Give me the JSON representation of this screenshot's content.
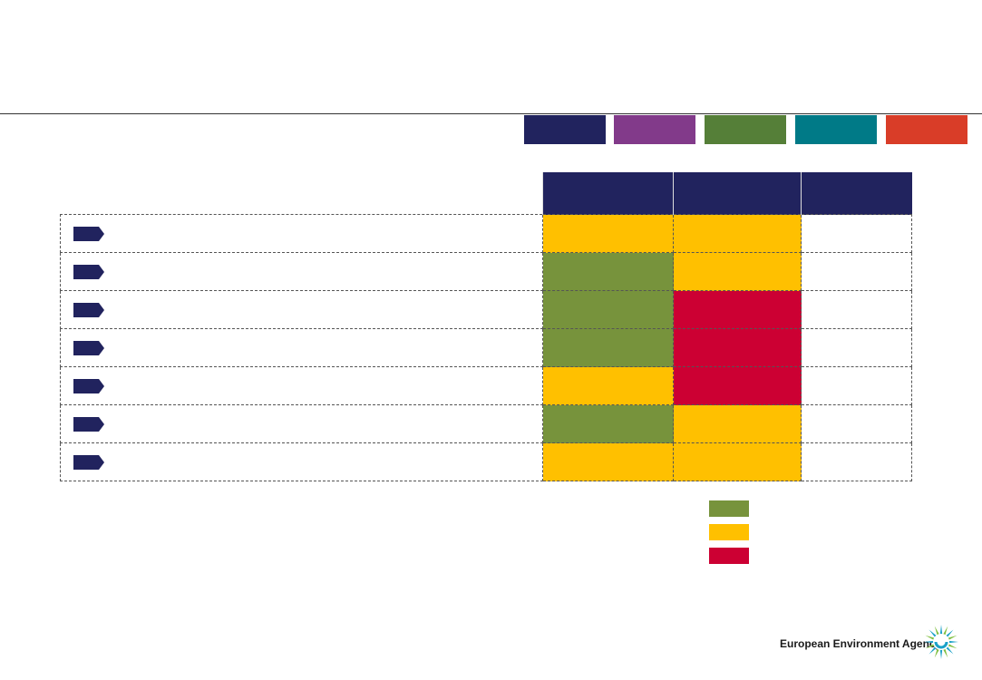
{
  "brand": {
    "agency_name": "European Environment Agency",
    "logo_icon": "eea-sunburst-logo-icon"
  },
  "colors": {
    "navy": "#21235e",
    "green": "#77933c",
    "amber": "#ffc000",
    "red": "#cc0033",
    "white": "#ffffff",
    "logo_blue": "#1aa1c8",
    "logo_green": "#7fbf3f"
  },
  "theme_tabs": [
    {
      "color": "#21235e"
    },
    {
      "color": "#823a8a"
    },
    {
      "color": "#557f38"
    },
    {
      "color": "#007a87"
    },
    {
      "color": "#d93d28"
    }
  ],
  "table": {
    "columns": [
      {
        "label": "",
        "color": "#21235e"
      },
      {
        "label": "",
        "color": "#21235e"
      },
      {
        "label": "",
        "color": "#21235e"
      }
    ],
    "rows": [
      {
        "label": "",
        "icon": "arrow-tag-icon",
        "statuses": [
          "amber",
          "amber",
          "white"
        ]
      },
      {
        "label": "",
        "icon": "arrow-tag-icon",
        "statuses": [
          "green",
          "amber",
          "white"
        ]
      },
      {
        "label": "",
        "icon": "arrow-tag-icon",
        "statuses": [
          "green",
          "red",
          "white"
        ]
      },
      {
        "label": "",
        "icon": "arrow-tag-icon",
        "statuses": [
          "green",
          "red",
          "white"
        ]
      },
      {
        "label": "",
        "icon": "arrow-tag-icon",
        "statuses": [
          "amber",
          "red",
          "white"
        ]
      },
      {
        "label": "",
        "icon": "arrow-tag-icon",
        "statuses": [
          "green",
          "amber",
          "white"
        ]
      },
      {
        "label": "",
        "icon": "arrow-tag-icon",
        "statuses": [
          "amber",
          "amber",
          "white"
        ]
      }
    ]
  },
  "legend": [
    {
      "status": "green",
      "label": ""
    },
    {
      "status": "amber",
      "label": ""
    },
    {
      "status": "red",
      "label": ""
    }
  ]
}
